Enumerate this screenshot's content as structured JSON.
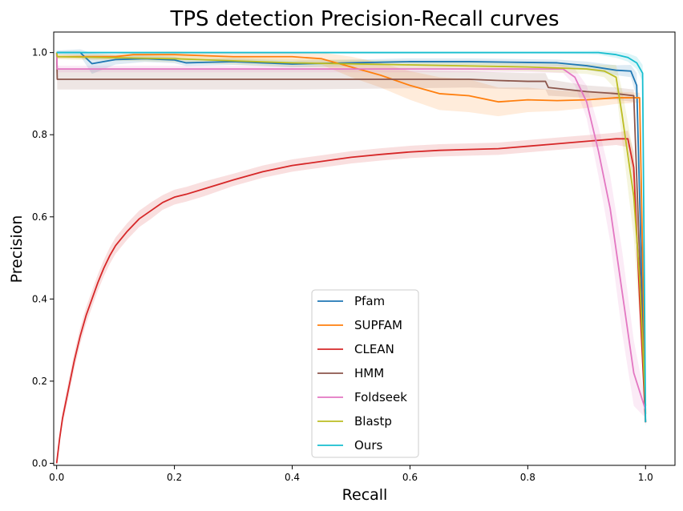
{
  "chart_data": {
    "type": "line",
    "title": "TPS detection Precision-Recall curves",
    "xlabel": "Recall",
    "ylabel": "Precision",
    "xlim": [
      -0.005,
      1.05
    ],
    "ylim": [
      -0.005,
      1.05
    ],
    "xticks": [
      0.0,
      0.2,
      0.4,
      0.6,
      0.8,
      1.0
    ],
    "xtick_labels": [
      "0.0",
      "0.2",
      "0.4",
      "0.6",
      "0.8",
      "1.0"
    ],
    "yticks": [
      0.0,
      0.2,
      0.4,
      0.6,
      0.8,
      1.0
    ],
    "ytick_labels": [
      "0.0",
      "0.2",
      "0.4",
      "0.6",
      "0.8",
      "1.0"
    ],
    "grid": false,
    "legend_position": "lower-center",
    "series": [
      {
        "name": "Pfam",
        "color": "#1f77b4",
        "x": [
          0,
          0.001,
          0.04,
          0.06,
          0.1,
          0.15,
          0.2,
          0.22,
          0.3,
          0.4,
          0.5,
          0.6,
          0.7,
          0.8,
          0.85,
          0.9,
          0.95,
          0.975,
          0.985,
          1.0
        ],
        "y": [
          1.0,
          1.0,
          1.0,
          0.973,
          0.983,
          0.985,
          0.982,
          0.975,
          0.978,
          0.972,
          0.975,
          0.978,
          0.978,
          0.976,
          0.975,
          0.968,
          0.957,
          0.955,
          0.92,
          0.1
        ],
        "band": [
          0.005,
          0.005,
          0.008,
          0.025,
          0.012,
          0.008,
          0.008,
          0.008,
          0.008,
          0.008,
          0.008,
          0.008,
          0.008,
          0.008,
          0.008,
          0.01,
          0.012,
          0.015,
          0.03,
          0.01
        ]
      },
      {
        "name": "SUPFAM",
        "color": "#ff7f0e",
        "x": [
          0,
          0.001,
          0.1,
          0.13,
          0.2,
          0.3,
          0.4,
          0.45,
          0.5,
          0.55,
          0.6,
          0.65,
          0.7,
          0.75,
          0.8,
          0.85,
          0.9,
          0.95,
          0.99,
          1.0
        ],
        "y": [
          1.0,
          0.99,
          0.99,
          0.995,
          0.995,
          0.99,
          0.99,
          0.985,
          0.965,
          0.945,
          0.92,
          0.9,
          0.895,
          0.88,
          0.885,
          0.883,
          0.885,
          0.89,
          0.89,
          0.12
        ],
        "band": [
          0.005,
          0.005,
          0.006,
          0.006,
          0.008,
          0.008,
          0.01,
          0.015,
          0.025,
          0.03,
          0.035,
          0.04,
          0.04,
          0.035,
          0.03,
          0.025,
          0.02,
          0.015,
          0.012,
          0.01
        ]
      },
      {
        "name": "CLEAN",
        "color": "#d62728",
        "x": [
          0,
          0.005,
          0.01,
          0.02,
          0.03,
          0.04,
          0.05,
          0.06,
          0.07,
          0.08,
          0.09,
          0.1,
          0.12,
          0.14,
          0.16,
          0.18,
          0.2,
          0.22,
          0.25,
          0.3,
          0.35,
          0.4,
          0.45,
          0.5,
          0.55,
          0.6,
          0.65,
          0.7,
          0.75,
          0.8,
          0.85,
          0.9,
          0.95,
          0.97,
          0.98,
          0.99,
          1.0
        ],
        "y": [
          0.0,
          0.06,
          0.11,
          0.18,
          0.25,
          0.31,
          0.36,
          0.4,
          0.44,
          0.475,
          0.505,
          0.53,
          0.565,
          0.595,
          0.615,
          0.635,
          0.648,
          0.655,
          0.668,
          0.69,
          0.71,
          0.725,
          0.735,
          0.745,
          0.752,
          0.758,
          0.762,
          0.764,
          0.766,
          0.772,
          0.778,
          0.784,
          0.79,
          0.79,
          0.72,
          0.4,
          0.1
        ],
        "band": [
          0.0,
          0.01,
          0.015,
          0.02,
          0.02,
          0.02,
          0.02,
          0.02,
          0.02,
          0.02,
          0.02,
          0.02,
          0.02,
          0.02,
          0.02,
          0.018,
          0.018,
          0.018,
          0.018,
          0.015,
          0.015,
          0.015,
          0.015,
          0.015,
          0.015,
          0.015,
          0.015,
          0.015,
          0.015,
          0.015,
          0.015,
          0.015,
          0.015,
          0.02,
          0.04,
          0.05,
          0.01
        ]
      },
      {
        "name": "HMM",
        "color": "#8c564b",
        "x": [
          0,
          0.001,
          0.2,
          0.4,
          0.6,
          0.7,
          0.75,
          0.8,
          0.83,
          0.835,
          0.9,
          0.95,
          0.98,
          1.0
        ],
        "y": [
          1.0,
          0.935,
          0.935,
          0.935,
          0.935,
          0.935,
          0.932,
          0.93,
          0.93,
          0.915,
          0.905,
          0.9,
          0.895,
          0.1
        ],
        "band": [
          0.005,
          0.025,
          0.025,
          0.025,
          0.022,
          0.02,
          0.02,
          0.02,
          0.02,
          0.02,
          0.015,
          0.015,
          0.015,
          0.01
        ]
      },
      {
        "name": "Foldseek",
        "color": "#e377c2",
        "x": [
          0,
          0.001,
          0.2,
          0.4,
          0.6,
          0.8,
          0.86,
          0.88,
          0.9,
          0.92,
          0.94,
          0.96,
          0.98,
          1.0
        ],
        "y": [
          1.0,
          0.96,
          0.96,
          0.96,
          0.96,
          0.96,
          0.96,
          0.94,
          0.88,
          0.76,
          0.62,
          0.42,
          0.22,
          0.13
        ],
        "band": [
          0.005,
          0.008,
          0.008,
          0.008,
          0.008,
          0.008,
          0.01,
          0.02,
          0.04,
          0.06,
          0.08,
          0.1,
          0.08,
          0.02
        ]
      },
      {
        "name": "Blastp",
        "color": "#bcbd22",
        "x": [
          0,
          0.001,
          0.2,
          0.4,
          0.6,
          0.8,
          0.9,
          0.93,
          0.95,
          0.96,
          0.97,
          0.98,
          0.99,
          1.0
        ],
        "y": [
          1.0,
          0.99,
          0.985,
          0.975,
          0.97,
          0.965,
          0.96,
          0.955,
          0.94,
          0.85,
          0.75,
          0.65,
          0.45,
          0.14
        ],
        "band": [
          0.005,
          0.006,
          0.008,
          0.01,
          0.01,
          0.01,
          0.012,
          0.015,
          0.03,
          0.06,
          0.08,
          0.1,
          0.1,
          0.02
        ]
      },
      {
        "name": "Ours",
        "color": "#17becf",
        "x": [
          0,
          0.001,
          0.2,
          0.4,
          0.6,
          0.8,
          0.9,
          0.92,
          0.95,
          0.97,
          0.985,
          0.995,
          1.0
        ],
        "y": [
          1.0,
          1.0,
          1.0,
          1.0,
          1.0,
          1.0,
          1.0,
          1.0,
          0.995,
          0.988,
          0.975,
          0.95,
          0.1
        ],
        "band": [
          0.003,
          0.003,
          0.003,
          0.003,
          0.003,
          0.003,
          0.004,
          0.005,
          0.008,
          0.01,
          0.015,
          0.02,
          0.01
        ]
      }
    ]
  }
}
